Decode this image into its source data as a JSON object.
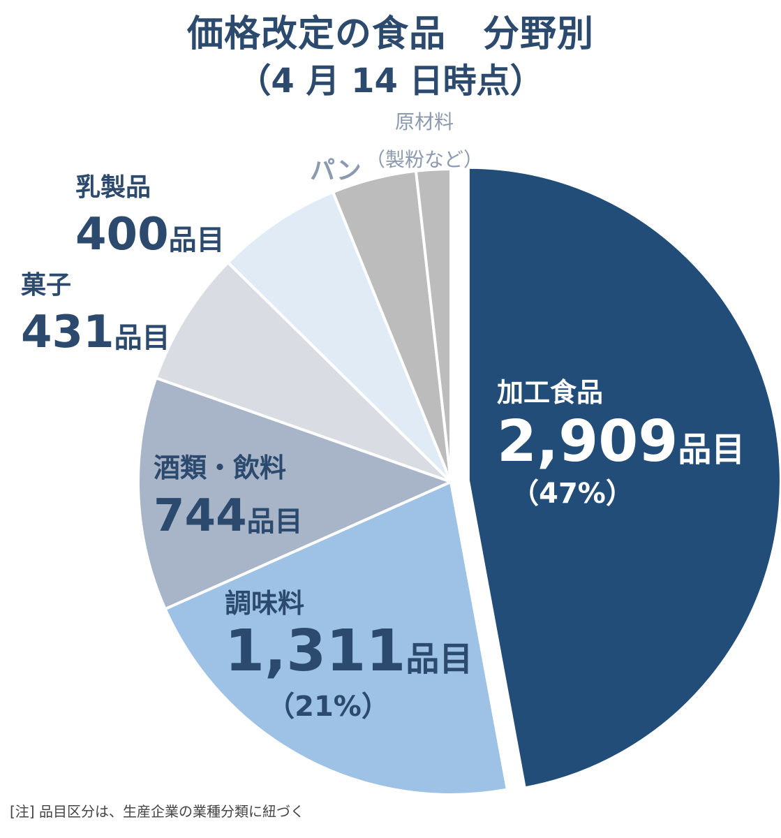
{
  "title_line1": "価格改定の食品　分野別",
  "title_line2": "（4 月 14 日時点）",
  "note": "[注]  品目区分は、生産企業の業種分類に紐づく",
  "unit": "品目",
  "chart_data": {
    "type": "pie",
    "slices": [
      {
        "name": "加工食品",
        "value": 2909,
        "value_text": "2,909",
        "pct_text": "（47%）",
        "color": "#214d78"
      },
      {
        "name": "調味料",
        "value": 1311,
        "value_text": "1,311",
        "pct_text": "（21%）",
        "color": "#9dc2e6"
      },
      {
        "name": "酒類・飲料",
        "value": 744,
        "value_text": "744",
        "pct_text": "",
        "color": "#a8b5c8"
      },
      {
        "name": "菓子",
        "value": 431,
        "value_text": "431",
        "pct_text": "",
        "color": "#d9dde3"
      },
      {
        "name": "乳製品",
        "value": 400,
        "value_text": "400",
        "pct_text": "",
        "color": "#e0ebf5"
      },
      {
        "name": "パン",
        "value": 270,
        "value_text": "",
        "pct_text": "",
        "color": "#bcbcbc"
      },
      {
        "name": "原材料（製粉など）",
        "value": 110,
        "value_text": "",
        "pct_text": "",
        "color": "#bcbcbc"
      }
    ],
    "labels": {
      "raw": [
        "原材料",
        "（製粉など）"
      ]
    }
  }
}
